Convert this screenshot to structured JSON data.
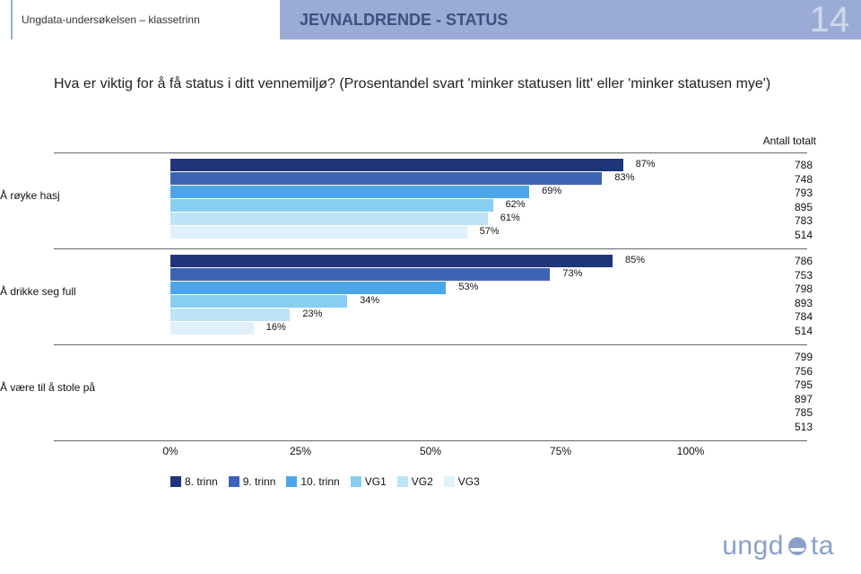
{
  "header": {
    "left": "Ungdata-undersøkelsen – klassetrinn",
    "center": "JEVNALDRENDE - STATUS",
    "page_number": "14"
  },
  "subtitle": "Hva er viktig for å få status i ditt vennemiljø? (Prosentandel svart 'minker statusen litt' eller 'minker statusen mye')",
  "chart": {
    "type": "grouped-horizontal-bar",
    "xlim": [
      0,
      100
    ],
    "xtick_step": 25,
    "xtick_labels": [
      "0%",
      "25%",
      "50%",
      "75%",
      "100%"
    ],
    "counts_header": "Antall totalt",
    "series": [
      {
        "name": "8. trinn",
        "color": "#1f357a"
      },
      {
        "name": "9. trinn",
        "color": "#3d63b4"
      },
      {
        "name": "10. trinn",
        "color": "#4aa6e8"
      },
      {
        "name": "VG1",
        "color": "#86cff0"
      },
      {
        "name": "VG2",
        "color": "#bde3f7"
      },
      {
        "name": "VG3",
        "color": "#e0f1fb"
      }
    ],
    "categories": [
      {
        "label": "Å røyke hasj",
        "values": [
          87,
          83,
          69,
          62,
          61,
          57
        ],
        "value_labels": [
          "87%",
          "83%",
          "69%",
          "62%",
          "61%",
          "57%"
        ],
        "counts": [
          "788",
          "748",
          "793",
          "895",
          "783",
          "514"
        ]
      },
      {
        "label": "Å drikke seg full",
        "values": [
          85,
          73,
          53,
          34,
          23,
          16
        ],
        "value_labels": [
          "85%",
          "73%",
          "53%",
          "34%",
          "23%",
          "16%"
        ],
        "counts": [
          "786",
          "753",
          "798",
          "893",
          "784",
          "514"
        ]
      },
      {
        "label": "Å være til å stole på",
        "values": [
          0,
          0,
          0,
          0,
          0,
          0
        ],
        "value_labels": [
          "",
          "",
          "",
          "",
          "",
          ""
        ],
        "counts": [
          "799",
          "756",
          "795",
          "897",
          "785",
          "513"
        ]
      }
    ]
  },
  "logo_text": "ungdata"
}
